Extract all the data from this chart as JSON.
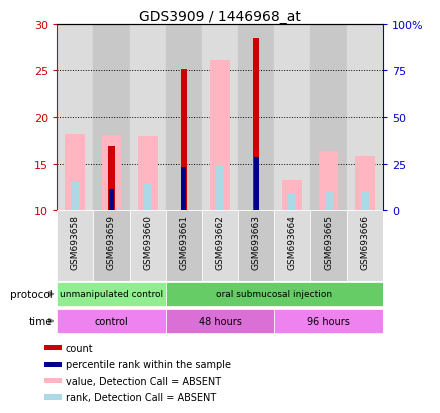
{
  "title": "GDS3909 / 1446968_at",
  "samples": [
    "GSM693658",
    "GSM693659",
    "GSM693660",
    "GSM693661",
    "GSM693662",
    "GSM693663",
    "GSM693664",
    "GSM693665",
    "GSM693666"
  ],
  "ylim": [
    10,
    30
  ],
  "yticks": [
    10,
    15,
    20,
    25,
    30
  ],
  "right_yticks": [
    0,
    25,
    50,
    75,
    100
  ],
  "right_ylim": [
    0,
    100
  ],
  "count_values": [
    null,
    16.9,
    null,
    25.1,
    null,
    28.5,
    null,
    null,
    null
  ],
  "percentile_values": [
    null,
    12.3,
    null,
    14.6,
    null,
    15.7,
    null,
    null,
    null
  ],
  "value_absent": [
    18.2,
    18.1,
    18.0,
    null,
    26.1,
    null,
    13.2,
    16.3,
    15.8
  ],
  "rank_absent": [
    13.0,
    12.4,
    12.8,
    null,
    14.7,
    null,
    11.8,
    12.0,
    12.0
  ],
  "protocol_groups": [
    {
      "label": "unmanipulated control",
      "start": 0,
      "end": 3,
      "color": "#90EE90"
    },
    {
      "label": "oral submucosal injection",
      "start": 3,
      "end": 9,
      "color": "#66CC66"
    }
  ],
  "time_groups": [
    {
      "label": "control",
      "start": 0,
      "end": 3,
      "color": "#EE82EE"
    },
    {
      "label": "48 hours",
      "start": 3,
      "end": 6,
      "color": "#DA70D6"
    },
    {
      "label": "96 hours",
      "start": 6,
      "end": 9,
      "color": "#EE82EE"
    }
  ],
  "count_color": "#CC0000",
  "percentile_color": "#00008B",
  "value_absent_color": "#FFB6C1",
  "rank_absent_color": "#ADD8E6",
  "left_axis_color": "#CC0000",
  "right_axis_color": "#0000CD",
  "col_bg_even": "#DCDCDC",
  "col_bg_odd": "#C8C8C8"
}
